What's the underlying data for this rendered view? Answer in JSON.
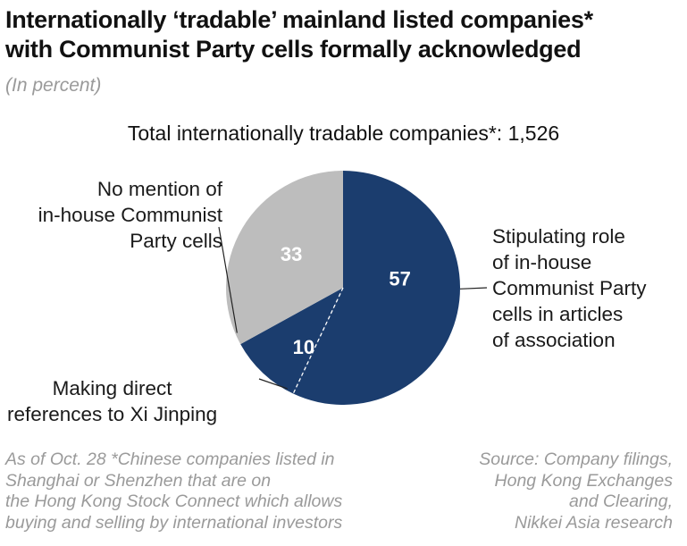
{
  "header": {
    "title_line1": "Internationally ‘tradable’ mainland listed companies*",
    "title_line2": "with Communist Party cells formally acknowledged",
    "unit": "(In percent)"
  },
  "total_label": "Total internationally tradable companies*: 1,526",
  "chart_data": {
    "type": "pie",
    "start": "12 o'clock, clockwise",
    "slices": [
      {
        "label_lines": [
          "Stipulating role",
          "of in-house",
          "Communist Party",
          "cells in articles",
          "of association"
        ],
        "value": 57,
        "value_label": "57",
        "color": "#1b3d6e"
      },
      {
        "label_lines": [
          "Making direct",
          "references to Xi Jinping"
        ],
        "value": 10,
        "value_label": "10",
        "color": "#1b3d6e"
      },
      {
        "label_lines": [
          "No mention of",
          "in-house Communist",
          "Party cells"
        ],
        "value": 33,
        "value_label": "33",
        "color": "#bdbdbd"
      }
    ]
  },
  "footnote": {
    "left_lines": [
      "As of Oct. 28  *Chinese companies listed in",
      "Shanghai or Shenzhen that are on",
      "the Hong Kong Stock Connect which allows",
      "buying and selling by international investors"
    ],
    "right_lines": [
      "Source: Company filings,",
      "Hong Kong Exchanges",
      "and Clearing,",
      "Nikkei Asia research"
    ]
  }
}
